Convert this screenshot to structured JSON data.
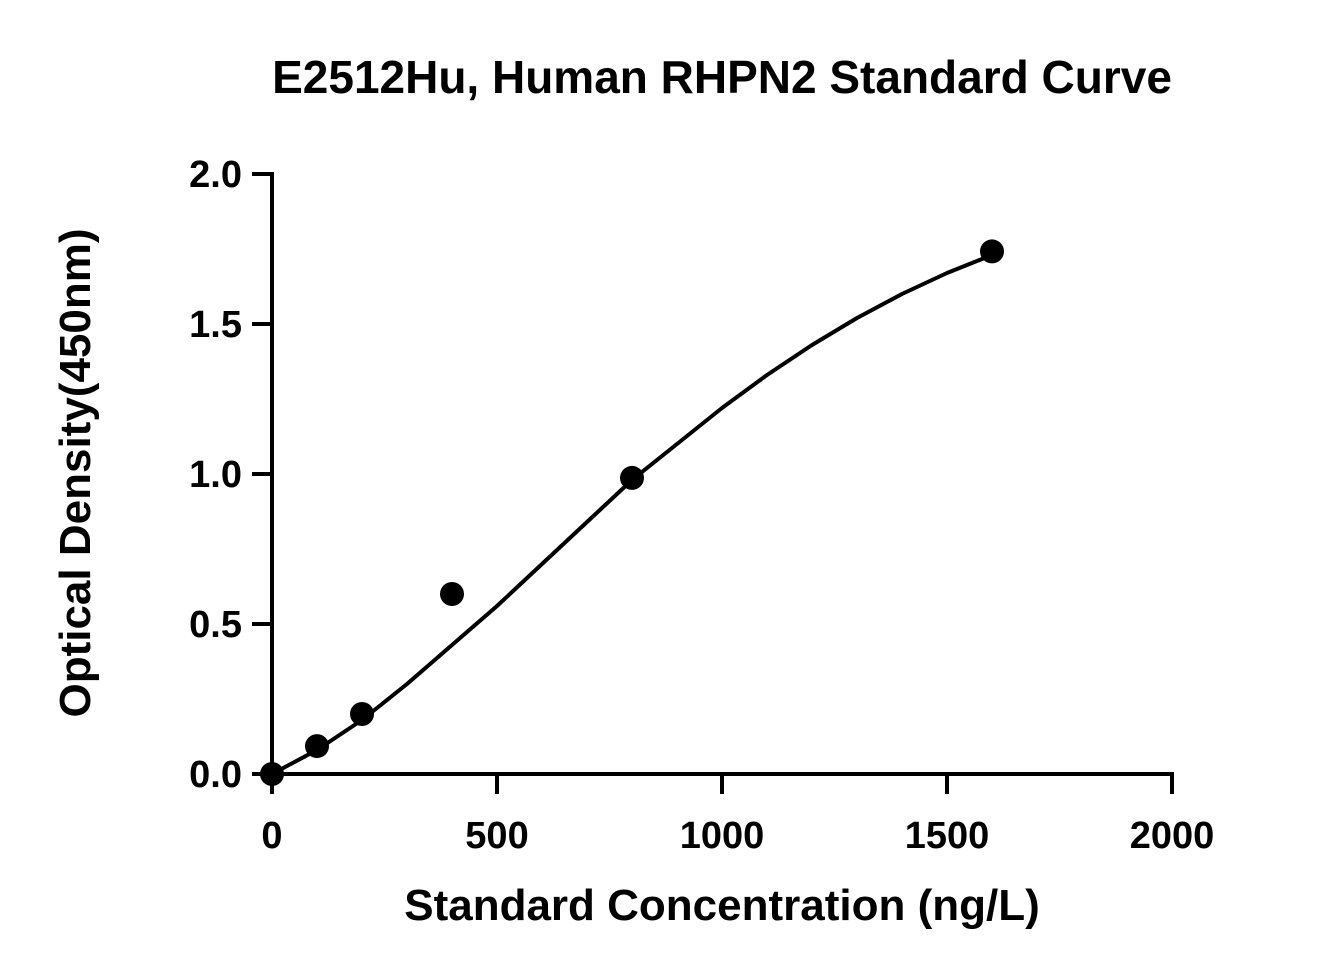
{
  "chart_data": {
    "type": "scatter",
    "title": "E2512Hu, Human RHPN2 Standard Curve",
    "xlabel": "Standard Concentration (ng/L)",
    "ylabel": "Optical Density(450nm)",
    "xlim": [
      0,
      2000
    ],
    "ylim": [
      0,
      2.0
    ],
    "x_ticks": [
      "0",
      "500",
      "1000",
      "1500",
      "2000"
    ],
    "y_ticks": [
      "0.0",
      "0.5",
      "1.0",
      "1.5",
      "2.0"
    ],
    "x_tick_values": [
      0,
      500,
      1000,
      1500,
      2000
    ],
    "y_tick_values": [
      0,
      0.5,
      1.0,
      1.5,
      2.0
    ],
    "grid": false,
    "series": [
      {
        "points": [
          {
            "x": 0,
            "y": 0.0
          },
          {
            "x": 100,
            "y": 0.093
          },
          {
            "x": 200,
            "y": 0.2
          },
          {
            "x": 400,
            "y": 0.6
          },
          {
            "x": 800,
            "y": 0.987
          },
          {
            "x": 1600,
            "y": 1.742
          }
        ],
        "fit_curve": {
          "x": [
            0,
            100,
            200,
            300,
            400,
            500,
            600,
            700,
            800,
            900,
            1000,
            1100,
            1200,
            1300,
            1400,
            1500,
            1600
          ],
          "y": [
            0.0,
            0.08,
            0.18,
            0.3,
            0.43,
            0.56,
            0.7,
            0.84,
            0.98,
            1.1,
            1.22,
            1.33,
            1.43,
            1.52,
            1.6,
            1.67,
            1.73
          ]
        },
        "color": "#000000"
      }
    ]
  }
}
